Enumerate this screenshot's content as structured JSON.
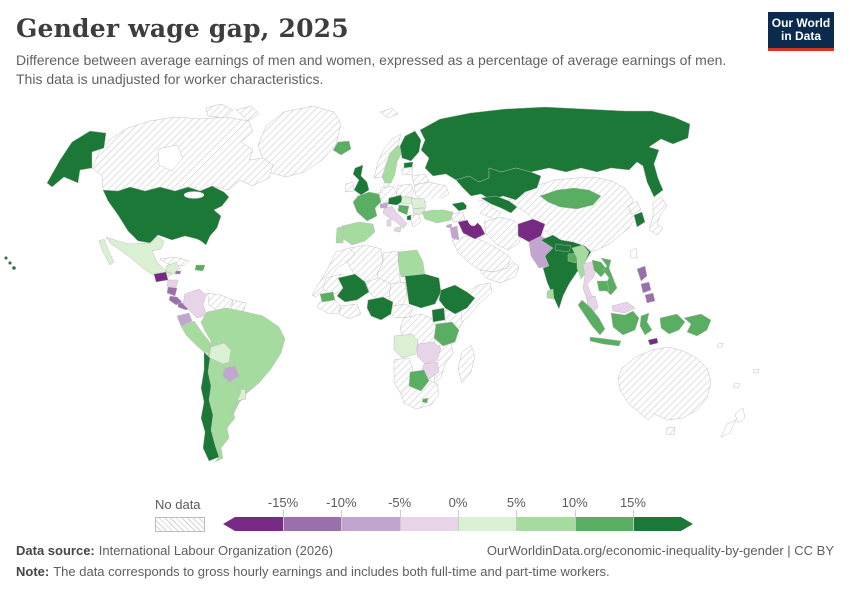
{
  "page": {
    "title": "Gender wage gap, 2025",
    "subtitle": "Difference between average earnings of men and women, expressed as a percentage of average earnings of men. This data is unadjusted for worker characteristics.",
    "logo": {
      "line1": "Our World",
      "line2": "in Data",
      "bg": "#0a2a4e",
      "accent": "#dc2f25"
    }
  },
  "footer": {
    "source_label": "Data source:",
    "source_value": "International Labour Organization (2026)",
    "citation": "OurWorldinData.org/economic-inequality-by-gender | CC BY",
    "note_label": "Note:",
    "note_value": "The data corresponds to gross hourly earnings and includes both full-time and part-time workers."
  },
  "chart_data": {
    "type": "heatmap",
    "variant": "world-choropleth-map",
    "title": "Gender wage gap, 2025",
    "year": "2025",
    "unit": "%",
    "legend_position": "bottom",
    "value_range": [
      -15,
      15
    ],
    "no_data_label": "No data",
    "legend_ticks": [
      "-15%",
      "-10%",
      "-5%",
      "0%",
      "5%",
      "10%",
      "15%"
    ],
    "bin_order": [
      "m4",
      "m3",
      "m2",
      "m1",
      "p1",
      "p2",
      "p3",
      "p4"
    ],
    "bins": {
      "m4": {
        "label": "less than -15%",
        "color": "#762a83"
      },
      "m3": {
        "label": "-15% to -10%",
        "color": "#9970ab"
      },
      "m2": {
        "label": "-10% to -5%",
        "color": "#c2a5cf"
      },
      "m1": {
        "label": "-5% to 0%",
        "color": "#e7d4e8"
      },
      "p1": {
        "label": "0% to 5%",
        "color": "#d9f0d3"
      },
      "p2": {
        "label": "5% to 10%",
        "color": "#a6dba0"
      },
      "p3": {
        "label": "10% to 15%",
        "color": "#5aae61"
      },
      "p4": {
        "label": "more than 15%",
        "color": "#1b7837"
      }
    },
    "no_data_fill": {
      "pattern": "diagonal-hatch",
      "line_color": "#d2d2d2"
    },
    "country_bins": {
      "united_states": "p4",
      "chile": "p4",
      "united_kingdom": "p4",
      "finland": "p4",
      "estonia": "p4",
      "russia": "p4",
      "austria": "p4",
      "kazakhstan": "p4",
      "uzbekistan": "p4",
      "azerbaijan_georgia": "p4",
      "india": "p4",
      "nepal": "p4",
      "south_korea": "p4",
      "mali": "p4",
      "nigeria": "p4",
      "sudan": "p4",
      "ethiopia": "p4",
      "uganda": "p4",
      "albania": "p4",
      "iceland": "p3",
      "france": "p3",
      "croatia_serbia": "p3",
      "senegal": "p3",
      "tanzania": "p3",
      "botswana": "p3",
      "lesotho": "p3",
      "mongolia": "p3",
      "laos": "p3",
      "vietnam": "p3",
      "cambodia": "p3",
      "indonesia": "p3",
      "papua_new_guinea": "p3",
      "bangladesh": "p3",
      "dominican_republic": "p3",
      "sweden": "p2",
      "spain": "p2",
      "portugal": "p2",
      "turkey": "p2",
      "egypt": "p2",
      "brazil": "p2",
      "peru": "p2",
      "argentina": "p2",
      "myanmar": "p2",
      "sri_lanka": "p2",
      "mexico": "p1",
      "bolivia": "p1",
      "uruguay": "p1",
      "angola": "p1",
      "hungary": "p1",
      "romania": "p1",
      "bulgaria": "p1",
      "colombia": "m1",
      "italy": "m1",
      "thailand": "m1",
      "malaysia": "m1",
      "zambia": "m1",
      "zimbabwe": "m1",
      "honduras": "m1",
      "ecuador": "m2",
      "paraguay": "m2",
      "pakistan": "m2",
      "switzerland": "m2",
      "israel_jordan": "m2",
      "cyprus": "m2",
      "philippines": "m3",
      "nicaragua": "m3",
      "costa_rica": "m3",
      "panama": "m3",
      "jamaica": "m3",
      "iraq": "m4",
      "afghanistan": "m4",
      "guatemala": "m4",
      "timor_leste": "m4",
      "greenland": "no_data",
      "canada": "no_data",
      "arctic_islands": "no_data",
      "svalbard": "no_data",
      "cuba": "no_data",
      "venezuela": "no_data",
      "guyana_suriname": "no_data",
      "norway": "no_data",
      "ireland": "no_data",
      "denmark": "no_data",
      "germany": "no_data",
      "poland": "no_data",
      "latvia_lithuania": "no_data",
      "belarus": "no_data",
      "ukraine": "no_data",
      "greece": "no_data",
      "morocco_w_sahara": "no_data",
      "algeria": "no_data",
      "libya": "no_data",
      "mauritania": "no_data",
      "niger": "no_data",
      "chad": "no_data",
      "cameroon_car": "no_data",
      "dr_congo": "no_data",
      "kenya": "no_data",
      "somalia": "no_data",
      "mozambique": "no_data",
      "madagascar": "no_data",
      "namibia": "no_data",
      "south_africa": "no_data",
      "saudi_arabia": "no_data",
      "yemen_oman": "no_data",
      "iran": "no_data",
      "turkmenistan": "no_data",
      "syria": "no_data",
      "guinea_region": "no_data",
      "ghana_region": "no_data",
      "china": "no_data",
      "north_korea": "no_data",
      "japan": "no_data",
      "australia": "no_data",
      "taiwan": "none",
      "new_zealand": "none",
      "pacific_islands": "none"
    }
  }
}
